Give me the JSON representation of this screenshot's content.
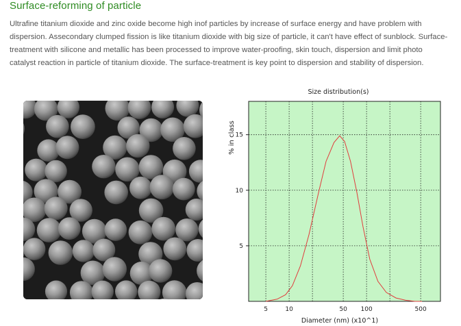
{
  "heading": "Surface-reforming of particle",
  "paragraph": "Ultrafine titanium dioxide and zinc oxide become high inof particles by increase of surface energy and have problem with dispersion. Assecondary clumped fission is like titanium dioxide with big size of particle, it can't have effect of sunblock. Surface-treatment with silicone and metallic has been processed to improve water-proofing, skin touch, dispersion and limit photo catalyst reaction in particle of titanium dioxide. The surface-treatment is key point to dispersion and stability of dispersion.",
  "colors": {
    "heading": "#2e8b22",
    "plot_background": "#c6f5c6",
    "curve": "#e03c3c"
  },
  "chart_data": {
    "type": "line",
    "title": "Size distribution(s)",
    "xlabel": "Diameter (nm) (x10^1)",
    "ylabel": "% in class",
    "x_scale": "log",
    "xlim": [
      3,
      900
    ],
    "ylim": [
      0,
      18
    ],
    "x_ticks": [
      5,
      10,
      50,
      100,
      500
    ],
    "y_ticks": [
      5,
      10,
      15
    ],
    "grid": true,
    "x": [
      5,
      7,
      9,
      11,
      14,
      18,
      24,
      30,
      38,
      45,
      52,
      62,
      75,
      90,
      110,
      140,
      180,
      240,
      320,
      420,
      520
    ],
    "y": [
      0.0,
      0.2,
      0.6,
      1.4,
      3.2,
      6.0,
      9.8,
      12.6,
      14.3,
      14.9,
      14.4,
      12.6,
      9.8,
      6.7,
      3.8,
      1.8,
      0.8,
      0.3,
      0.1,
      0.0,
      0.0
    ]
  }
}
